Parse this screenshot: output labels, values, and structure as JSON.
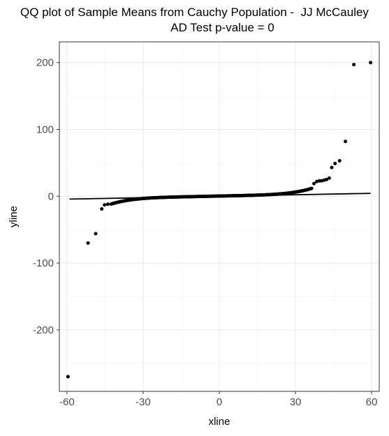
{
  "chart_data": {
    "type": "scatter",
    "title": "QQ plot of Sample Means from Cauchy Population -  JJ McCauley",
    "subtitle": "AD Test p-value = 0",
    "xlabel": "xline",
    "ylabel": "yline",
    "xlim": [
      -63,
      63
    ],
    "ylim": [
      -292,
      231
    ],
    "x_ticks": [
      -60,
      -30,
      0,
      30,
      60
    ],
    "x_tick_labels": [
      "-60",
      "-30",
      "0",
      "30",
      "60"
    ],
    "y_ticks": [
      -200,
      -100,
      0,
      100,
      200
    ],
    "y_tick_labels": [
      "-200",
      "-100",
      "0",
      "100",
      "200"
    ],
    "grid": true,
    "reference_line": {
      "x": [
        -59,
        59.6
      ],
      "y": [
        -4.3,
        4.3
      ]
    },
    "outlier_points": [
      {
        "x": -59.6,
        "y": -270
      },
      {
        "x": -51.7,
        "y": -70
      },
      {
        "x": -48.7,
        "y": -56
      },
      {
        "x": -46.3,
        "y": -19
      },
      {
        "x": -45.2,
        "y": -13
      },
      {
        "x": -43.9,
        "y": -12
      },
      {
        "x": 37.3,
        "y": 19
      },
      {
        "x": 38.4,
        "y": 22
      },
      {
        "x": 39.4,
        "y": 23
      },
      {
        "x": 40.3,
        "y": 23
      },
      {
        "x": 41.3,
        "y": 24
      },
      {
        "x": 42.2,
        "y": 25
      },
      {
        "x": 43.3,
        "y": 27
      },
      {
        "x": 44.3,
        "y": 43
      },
      {
        "x": 45.6,
        "y": 49
      },
      {
        "x": 47.4,
        "y": 53
      },
      {
        "x": 49.7,
        "y": 82
      },
      {
        "x": 53.0,
        "y": 197
      },
      {
        "x": 59.6,
        "y": 200
      }
    ],
    "bulk_points": {
      "x_from": -42.6,
      "x_to": 36.4,
      "count": 450,
      "y_at_x_from": -10,
      "y_at_x_to": 10
    },
    "colors": {
      "points": "#000000",
      "line": "#000000",
      "panel_border": "#333333",
      "grid_major": "#ebebeb",
      "grid_minor": "#f5f5f5"
    }
  }
}
